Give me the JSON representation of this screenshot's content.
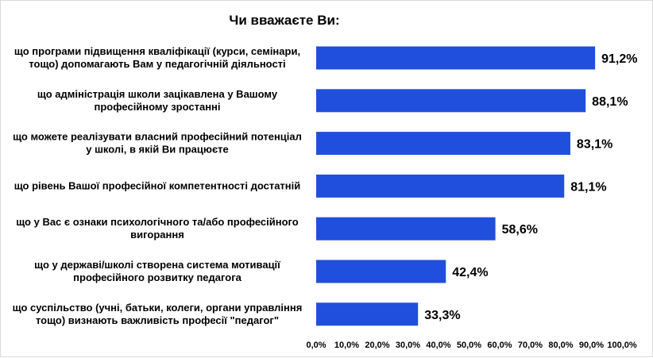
{
  "chart_data": {
    "type": "bar",
    "orientation": "horizontal",
    "title": "Чи вважаєте Ви:",
    "categories": [
      [
        "що програми підвищення кваліфікації (курси, семінари,",
        "тощо) допомагають Вам у педагогічній діяльності"
      ],
      [
        "що адміністрація школи зацікавлена у Вашому",
        "професійному зростанні"
      ],
      [
        "що можете реалізувати власний професійний потенціал",
        "у школі, в якій Ви працюєте"
      ],
      [
        "що рівень Вашої професійної компетентності достатній"
      ],
      [
        "що у Вас є ознаки психологічного та/або професійного",
        "вигорання"
      ],
      [
        "що у державі/школі створена система мотивації",
        "професійного розвитку педагога"
      ],
      [
        "що суспільство (учні, батьки, колеги, органи управління",
        "тощо) визнають важливість професії \"педагог\""
      ]
    ],
    "values": [
      91.2,
      88.1,
      83.1,
      81.1,
      58.6,
      42.4,
      33.3
    ],
    "value_labels": [
      "91,2%",
      "88,1%",
      "83,1%",
      "81,1%",
      "58,6%",
      "42,4%",
      "33,3%"
    ],
    "xlim": [
      0,
      100
    ],
    "x_ticks": [
      "0,0%",
      "10,0%",
      "20,0%",
      "30,0%",
      "40,0%",
      "50,0%",
      "60,0%",
      "70,0%",
      "80,0%",
      "90,0%",
      "100,0%"
    ],
    "xlabel": "",
    "ylabel": "",
    "grid": false,
    "legend": "none",
    "bar_color": "#1f4fdc"
  }
}
